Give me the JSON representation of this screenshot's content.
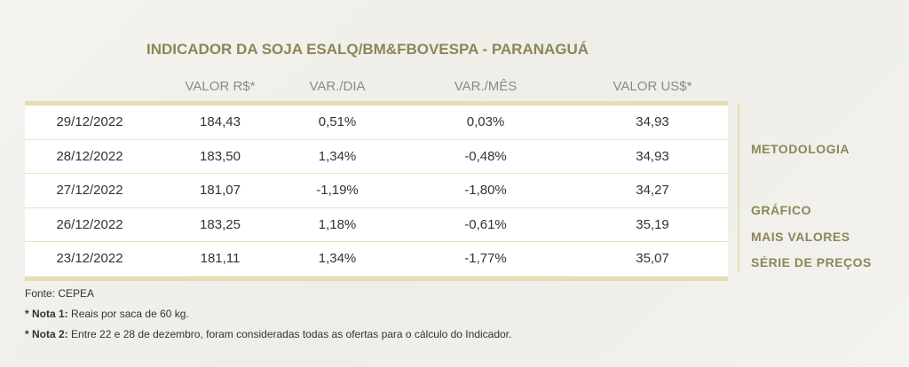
{
  "header": {
    "title": "INDICADOR DA SOJA ESALQ/BM&FBOVESPA - PARANAGUÁ"
  },
  "table": {
    "columns": [
      "VALOR R$*",
      "VAR./DIA",
      "VAR./MÊS",
      "VALOR US$*"
    ],
    "rows": [
      [
        "29/12/2022",
        "184,43",
        "0,51%",
        "0,03%",
        "34,93"
      ],
      [
        "28/12/2022",
        "183,50",
        "1,34%",
        "-0,48%",
        "34,93"
      ],
      [
        "27/12/2022",
        "181,07",
        "-1,19%",
        "-1,80%",
        "34,27"
      ],
      [
        "26/12/2022",
        "183,25",
        "1,18%",
        "-0,61%",
        "35,19"
      ],
      [
        "23/12/2022",
        "181,11",
        "1,34%",
        "-1,77%",
        "35,07"
      ]
    ]
  },
  "links": [
    "METODOLOGIA",
    "GRÁFICO",
    "MAIS VALORES",
    "SÉRIE DE PREÇOS"
  ],
  "notes": {
    "source": "Fonte: CEPEA",
    "items": [
      {
        "label": "* Nota 1:",
        "text": "Reais por saca de 60 kg."
      },
      {
        "label": "* Nota 2:",
        "text": "Entre 22 e 28 de dezembro, foram consideradas todas as ofertas para o cálculo do Indicador."
      }
    ]
  }
}
